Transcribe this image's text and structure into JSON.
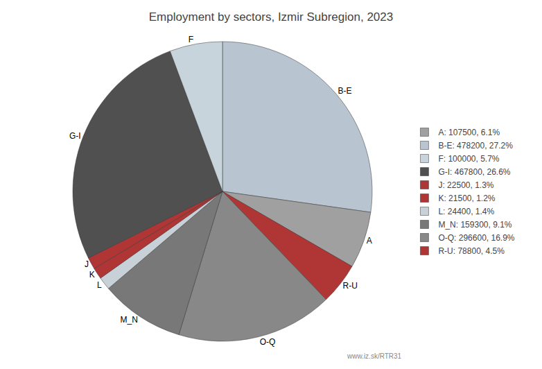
{
  "chart_data": {
    "type": "pie",
    "title": "Employment by sectors, Izmir Subregion, 2023",
    "categories": [
      "B-E",
      "A",
      "R-U",
      "O-Q",
      "M_N",
      "L",
      "K",
      "J",
      "G-I",
      "F"
    ],
    "values": [
      478200,
      107500,
      78800,
      296600,
      159300,
      24400,
      21500,
      22500,
      467800,
      100000
    ],
    "colors": [
      "#b8c4d0",
      "#a0a0a0",
      "#b03535",
      "#888888",
      "#787878",
      "#c8d0d8",
      "#b03535",
      "#b03535",
      "#505050",
      "#c8d4dc"
    ],
    "legend": "right",
    "legend_labels": [
      "A: 107500, 6.1%",
      "B-E: 478200, 27.2%",
      "F: 100000, 5.7%",
      "G-I: 467800, 26.6%",
      "J: 22500, 1.3%",
      "K: 21500, 1.2%",
      "L: 24400, 1.4%",
      "M_N: 159300, 9.1%",
      "O-Q: 296600, 16.9%",
      "R-U: 78800, 4.5%"
    ],
    "legend_colors": [
      "#a0a0a0",
      "#b8c4d0",
      "#c8d4dc",
      "#505050",
      "#b03535",
      "#b03535",
      "#c8d0d8",
      "#787878",
      "#888888",
      "#b03535"
    ],
    "annotations": [
      "www.iz.sk/RTR31"
    ]
  }
}
